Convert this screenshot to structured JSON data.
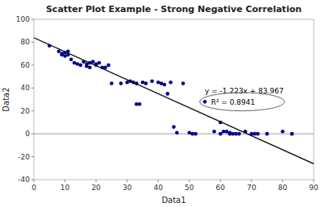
{
  "chart_data": {
    "type": "scatter",
    "title": "Scatter Plot Example - Strong Negative Correlation",
    "x_label": "Data1",
    "y_label": "Data2",
    "xlim": [
      0,
      90
    ],
    "ylim": [
      -40,
      100
    ],
    "xticks": [
      0,
      10,
      20,
      30,
      40,
      50,
      60,
      70,
      80,
      90
    ],
    "yticks": [
      -40,
      -20,
      0,
      20,
      40,
      60,
      80,
      100
    ],
    "grid": false,
    "hlines": [
      0
    ],
    "annotations": [
      "y = -1.223x + 83.967",
      "R² = 0.8941"
    ],
    "series": [
      {
        "type": "scatter",
        "color": "#00008B",
        "x": [
          5,
          8,
          9,
          9,
          10,
          10,
          11,
          11,
          12,
          13,
          14,
          15,
          16,
          17,
          17,
          18,
          18,
          19,
          20,
          20,
          21,
          22,
          23,
          24,
          25,
          28,
          30,
          31,
          32,
          33,
          33,
          34,
          35,
          36,
          38,
          40,
          41,
          42,
          43,
          44,
          45,
          46,
          48,
          50,
          51,
          52,
          55,
          58,
          60,
          60,
          61,
          62,
          63,
          63,
          64,
          65,
          66,
          68,
          70,
          71,
          72,
          75,
          80,
          83
        ],
        "values": [
          77,
          72,
          70,
          69,
          71,
          68,
          69,
          72,
          65,
          62,
          61,
          60,
          63,
          61,
          59,
          62,
          58,
          63,
          61,
          60,
          62,
          58,
          58,
          60,
          44,
          44,
          45,
          46,
          45,
          44,
          26,
          26,
          45,
          44,
          46,
          45,
          44,
          43,
          35,
          45,
          6,
          1,
          44,
          1,
          0,
          0,
          28,
          2,
          10,
          0,
          2,
          2,
          1,
          0,
          0,
          0,
          0,
          2,
          0,
          0,
          0,
          0,
          2,
          0
        ]
      },
      {
        "type": "line",
        "color": "#111111",
        "x": [
          0,
          90
        ],
        "values": [
          83.967,
          -26.103
        ]
      }
    ]
  }
}
